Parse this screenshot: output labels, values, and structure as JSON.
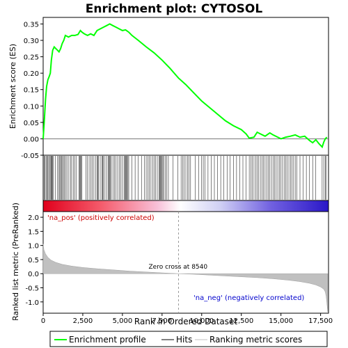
{
  "chart_data": {
    "type": "line",
    "title": "Enrichment plot: CYTOSOL",
    "top_panel": {
      "ylabel": "Enrichment score (ES)",
      "ylim": [
        -0.05,
        0.37
      ],
      "yticks": [
        "-0.05",
        "0.00",
        "0.05",
        "0.10",
        "0.15",
        "0.20",
        "0.25",
        "0.30",
        "0.35"
      ],
      "series": [
        {
          "name": "Enrichment profile",
          "color": "#00ff00",
          "x": [
            0,
            80,
            150,
            220,
            300,
            380,
            450,
            520,
            600,
            700,
            800,
            900,
            1000,
            1100,
            1200,
            1300,
            1400,
            1600,
            1800,
            2000,
            2200,
            2350,
            2450,
            2600,
            2800,
            3000,
            3200,
            3400,
            3600,
            3800,
            4000,
            4200,
            4400,
            4600,
            4800,
            5000,
            5200,
            5400,
            5600,
            6000,
            6500,
            7000,
            7500,
            8000,
            8540,
            9000,
            9500,
            10000,
            10500,
            11000,
            11500,
            12000,
            12500,
            12800,
            13000,
            13300,
            13500,
            13700,
            14000,
            14300,
            14500,
            14800,
            15000,
            15300,
            15600,
            15900,
            16200,
            16500,
            16800,
            17000,
            17200,
            17400,
            17600,
            17700,
            17800,
            17900
          ],
          "y": [
            0.0,
            0.06,
            0.12,
            0.16,
            0.18,
            0.19,
            0.2,
            0.24,
            0.27,
            0.28,
            0.275,
            0.27,
            0.265,
            0.275,
            0.29,
            0.3,
            0.315,
            0.31,
            0.315,
            0.315,
            0.318,
            0.33,
            0.325,
            0.32,
            0.315,
            0.32,
            0.315,
            0.33,
            0.335,
            0.34,
            0.345,
            0.35,
            0.345,
            0.34,
            0.335,
            0.33,
            0.332,
            0.325,
            0.315,
            0.3,
            0.28,
            0.262,
            0.24,
            0.215,
            0.185,
            0.165,
            0.14,
            0.115,
            0.095,
            0.075,
            0.055,
            0.04,
            0.028,
            0.015,
            0.002,
            0.005,
            0.02,
            0.015,
            0.008,
            0.018,
            0.012,
            0.005,
            0.0,
            0.005,
            0.008,
            0.012,
            0.005,
            0.008,
            -0.005,
            -0.012,
            -0.003,
            -0.015,
            -0.025,
            -0.01,
            0.0,
            0.005
          ]
        }
      ]
    },
    "hits_panel": {
      "series_name": "Hits",
      "hit_positions": [
        10,
        60,
        120,
        180,
        240,
        300,
        350,
        420,
        480,
        520,
        560,
        600,
        650,
        760,
        900,
        1000,
        1050,
        1100,
        1150,
        1220,
        1280,
        1350,
        1420,
        1500,
        1620,
        1720,
        1800,
        1900,
        2000,
        2100,
        2250,
        2300,
        2350,
        2400,
        2450,
        2700,
        2800,
        2900,
        3000,
        3100,
        3200,
        3300,
        3400,
        3450,
        3500,
        3600,
        3700,
        3750,
        3800,
        3900,
        4000,
        4100,
        4150,
        4200,
        4250,
        4300,
        4400,
        4500,
        4600,
        4700,
        4800,
        4900,
        5000,
        5100,
        5150,
        5200,
        5250,
        5300,
        5350,
        5400,
        5600,
        5800,
        6000,
        6200,
        6400,
        6500,
        6600,
        6700,
        6800,
        6900,
        7000,
        7100,
        7200,
        7300,
        7350,
        7400,
        7450,
        7500,
        7550,
        7600,
        7700,
        7800,
        7900,
        8200,
        8500,
        8700,
        8800,
        8900,
        9000,
        9100,
        9200,
        9300,
        9600,
        9800,
        10000,
        10100,
        10200,
        10400,
        10600,
        10800,
        11000,
        11200,
        11400,
        11600,
        11800,
        12000,
        12200,
        12400,
        12600,
        12800,
        13000,
        13100,
        13200,
        13300,
        13400,
        13500,
        13600,
        13700,
        13800,
        13900,
        14000,
        14100,
        14200,
        14300,
        14400,
        14500,
        14600,
        14700,
        14800,
        14900,
        15000,
        15100,
        15200,
        15300,
        15400,
        15500,
        15600,
        15700,
        15800,
        15900,
        16000,
        16200,
        16400,
        16600,
        16800,
        17000,
        17200,
        17600,
        17700,
        17800,
        17850
      ],
      "bar_colors": [
        "#e0001c",
        "#ffffff",
        "#2a17c8"
      ]
    },
    "rank_panel": {
      "ylabel": "Ranked list metric (PreRanked)",
      "xlabel": "Rank in Ordered Dataset",
      "ylim": [
        -1.4,
        2.2
      ],
      "yticks": [
        "-1.0",
        "-0.5",
        "0.0",
        "0.5",
        "1.0",
        "1.5",
        "2.0"
      ],
      "xticks": [
        "0",
        "2,500",
        "5,000",
        "7,500",
        "10,000",
        "12,500",
        "15,000",
        "17,500"
      ],
      "xlim": [
        0,
        18000
      ],
      "series_name": "Ranking metric scores",
      "metric_x": [
        0,
        50,
        150,
        300,
        500,
        800,
        1200,
        1800,
        2500,
        3500,
        4500,
        5500,
        6500,
        7500,
        8540,
        9500,
        10500,
        11500,
        12500,
        13500,
        14500,
        15500,
        16200,
        16800,
        17200,
        17500,
        17700,
        17800,
        17850,
        17900,
        17950
      ],
      "metric_y": [
        1.05,
        0.85,
        0.7,
        0.58,
        0.48,
        0.4,
        0.33,
        0.27,
        0.22,
        0.17,
        0.13,
        0.09,
        0.06,
        0.03,
        0.0,
        -0.02,
        -0.05,
        -0.08,
        -0.11,
        -0.14,
        -0.18,
        -0.23,
        -0.28,
        -0.34,
        -0.4,
        -0.47,
        -0.55,
        -0.65,
        -0.8,
        -1.05,
        -1.35
      ],
      "zero_cross": 8540,
      "zero_cross_label": "Zero cross at 8540",
      "pos_label": "'na_pos' (positively correlated)",
      "neg_label": "'na_neg' (negatively correlated)"
    },
    "legend": [
      {
        "label": "Enrichment profile",
        "color": "#00ff00"
      },
      {
        "label": "Hits",
        "color": "#000000"
      },
      {
        "label": "Ranking metric scores",
        "color": "#c0c0c0"
      }
    ]
  }
}
